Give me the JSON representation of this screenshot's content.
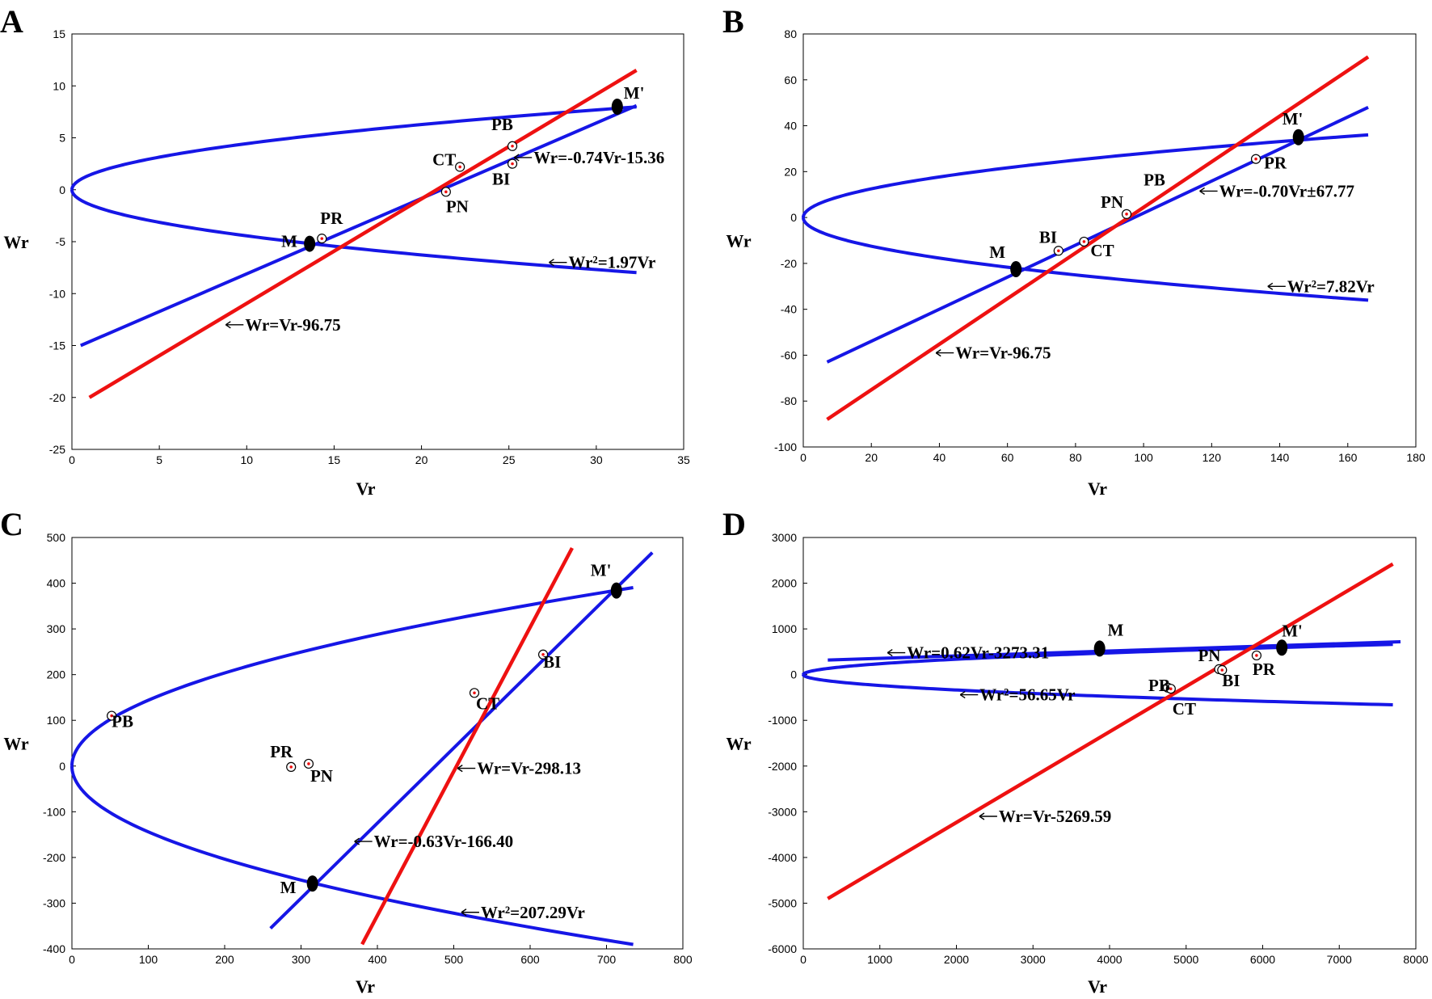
{
  "colors": {
    "blue": "#1616e6",
    "red": "#ee1111",
    "black": "#000000"
  },
  "chart_data": [
    {
      "panel": "A",
      "type": "line",
      "xlabel": "Vr",
      "ylabel": "Wr",
      "xlim": [
        0,
        35
      ],
      "ylim": [
        -25,
        15
      ],
      "xticks": [
        "0",
        "5",
        "10",
        "15",
        "20",
        "25",
        "30",
        "35"
      ],
      "yticks": [
        "-25",
        "-20",
        "-15",
        "-10",
        "-5",
        "0",
        "5",
        "10",
        "15"
      ],
      "parabola": {
        "k": 1.97,
        "xmax": 32.3
      },
      "red_line": {
        "x1": 1,
        "y1": -20,
        "x2": 32.3,
        "y2": 11.5
      },
      "blue_line": {
        "x1": 0.5,
        "y1": -15,
        "x2": 32.3,
        "y2": 8.1
      },
      "points": [
        {
          "label": "M",
          "x": 13.6,
          "y": -5.2,
          "filled": true
        },
        {
          "label": "M'",
          "x": 31.2,
          "y": 8.0,
          "filled": true
        },
        {
          "label": "PR",
          "x": 14.3,
          "y": -4.7,
          "filled": false
        },
        {
          "label": "CT",
          "x": 22.2,
          "y": 2.2,
          "filled": false
        },
        {
          "label": "PB",
          "x": 25.2,
          "y": 4.2,
          "filled": false
        },
        {
          "label": "BI",
          "x": 25.2,
          "y": 2.5,
          "filled": false
        },
        {
          "label": "PN",
          "x": 21.4,
          "y": -0.2,
          "filled": false
        }
      ],
      "annotations": [
        {
          "text": "Wr=-0.74Vr-15.36",
          "x": 25.3,
          "y": 3.1
        },
        {
          "text": "Wr²=1.97Vr",
          "x": 27.3,
          "y": -7.0
        },
        {
          "text": "Wr=Vr-96.75",
          "x": 8.8,
          "y": -13.0
        }
      ]
    },
    {
      "panel": "B",
      "type": "line",
      "xlabel": "Vr",
      "ylabel": "Wr",
      "xlim": [
        0,
        180
      ],
      "ylim": [
        -100,
        80
      ],
      "xticks": [
        "0",
        "20",
        "40",
        "60",
        "80",
        "100",
        "120",
        "140",
        "160",
        "180"
      ],
      "yticks": [
        "-100",
        "-80",
        "-60",
        "-40",
        "-20",
        "0",
        "20",
        "40",
        "60",
        "80"
      ],
      "parabola": {
        "k": 7.82,
        "xmax": 166
      },
      "red_line": {
        "x1": 7,
        "y1": -88,
        "x2": 166,
        "y2": 70
      },
      "blue_line": {
        "x1": 7,
        "y1": -63,
        "x2": 166,
        "y2": 48
      },
      "points": [
        {
          "label": "M",
          "x": 62.5,
          "y": -22.5,
          "filled": true
        },
        {
          "label": "M'",
          "x": 145.5,
          "y": 35,
          "filled": true
        },
        {
          "label": "BI",
          "x": 75,
          "y": -14.5,
          "filled": false
        },
        {
          "label": "CT",
          "x": 82.5,
          "y": -10.5,
          "filled": false
        },
        {
          "label": "PN",
          "x": 95,
          "y": 1.5,
          "filled": false
        },
        {
          "label": "PR",
          "x": 133,
          "y": 25.5,
          "filled": false
        }
      ],
      "extra_labels": [
        {
          "text": "PB",
          "x": 100,
          "y": 14
        }
      ],
      "annotations": [
        {
          "text": "Wr=-0.70Vr±67.77",
          "x": 116.5,
          "y": 11.5
        },
        {
          "text": "Wr²=7.82Vr",
          "x": 136.5,
          "y": -30
        },
        {
          "text": "Wr=Vr-96.75",
          "x": 39,
          "y": -59
        }
      ]
    },
    {
      "panel": "C",
      "type": "line",
      "xlabel": "Vr",
      "ylabel": "Wr",
      "xlim": [
        0,
        800
      ],
      "ylim": [
        -400,
        500
      ],
      "xticks": [
        "0",
        "100",
        "200",
        "300",
        "400",
        "500",
        "600",
        "700",
        "800"
      ],
      "yticks": [
        "-400",
        "-300",
        "-200",
        "-100",
        "0",
        "100",
        "200",
        "300",
        "400",
        "500"
      ],
      "parabola": {
        "k": 207.29,
        "xmax": 735,
        "upper_xmax": 735,
        "lower_xmax": 735
      },
      "red_line": {
        "x1": 380,
        "y1": -390,
        "x2": 655,
        "y2": 477
      },
      "blue_line": {
        "x1": 260,
        "y1": -355,
        "x2": 760,
        "y2": 467
      },
      "points": [
        {
          "label": "M",
          "x": 315,
          "y": -257,
          "filled": true
        },
        {
          "label": "M'",
          "x": 713,
          "y": 384,
          "filled": true
        },
        {
          "label": "PB",
          "x": 52,
          "y": 110,
          "filled": false
        },
        {
          "label": "PR",
          "x": 287,
          "y": -2,
          "filled": false
        },
        {
          "label": "PN",
          "x": 310,
          "y": 5,
          "filled": false
        },
        {
          "label": "CT",
          "x": 527,
          "y": 160,
          "filled": false
        },
        {
          "label": "BI",
          "x": 617,
          "y": 244,
          "filled": false
        }
      ],
      "annotations": [
        {
          "text": "Wr=Vr-298.13",
          "x": 505,
          "y": -5
        },
        {
          "text": "Wr=-0.63Vr-166.40",
          "x": 370,
          "y": -165
        },
        {
          "text": "Wr²=207.29Vr",
          "x": 510,
          "y": -320
        }
      ]
    },
    {
      "panel": "D",
      "type": "line",
      "xlabel": "Vr",
      "ylabel": "Wr",
      "xlim": [
        0,
        8000
      ],
      "ylim": [
        -6000,
        3000
      ],
      "xticks": [
        "0",
        "1000",
        "2000",
        "3000",
        "4000",
        "5000",
        "6000",
        "7000",
        "8000"
      ],
      "yticks": [
        "-6000",
        "-5000",
        "-4000",
        "-3000",
        "-2000",
        "-1000",
        "0",
        "1000",
        "2000",
        "3000"
      ],
      "parabola": {
        "k": 56.65,
        "xmax": 7700
      },
      "red_line": {
        "x1": 320,
        "y1": -4900,
        "x2": 7700,
        "y2": 2420
      },
      "blue_line": {
        "x1": 320,
        "y1": 320,
        "x2": 7800,
        "y2": 720
      },
      "points": [
        {
          "label": "M",
          "x": 3870,
          "y": 570,
          "filled": true
        },
        {
          "label": "M'",
          "x": 6250,
          "y": 590,
          "filled": true
        },
        {
          "label": "PB",
          "x": 4760,
          "y": -285,
          "filled": false
        },
        {
          "label": "CT",
          "x": 4800,
          "y": -310,
          "filled": false
        },
        {
          "label": "PN",
          "x": 5430,
          "y": 120,
          "filled": false
        },
        {
          "label": "BI",
          "x": 5470,
          "y": 100,
          "filled": false
        },
        {
          "label": "PR",
          "x": 5920,
          "y": 420,
          "filled": false
        }
      ],
      "annotations": [
        {
          "text": "Wr=0.62Vr-3273.31",
          "x": 1100,
          "y": 480
        },
        {
          "text": "Wr²=56.65Vr",
          "x": 2050,
          "y": -440
        },
        {
          "text": "Wr=Vr-5269.59",
          "x": 2300,
          "y": -3100
        }
      ]
    }
  ]
}
